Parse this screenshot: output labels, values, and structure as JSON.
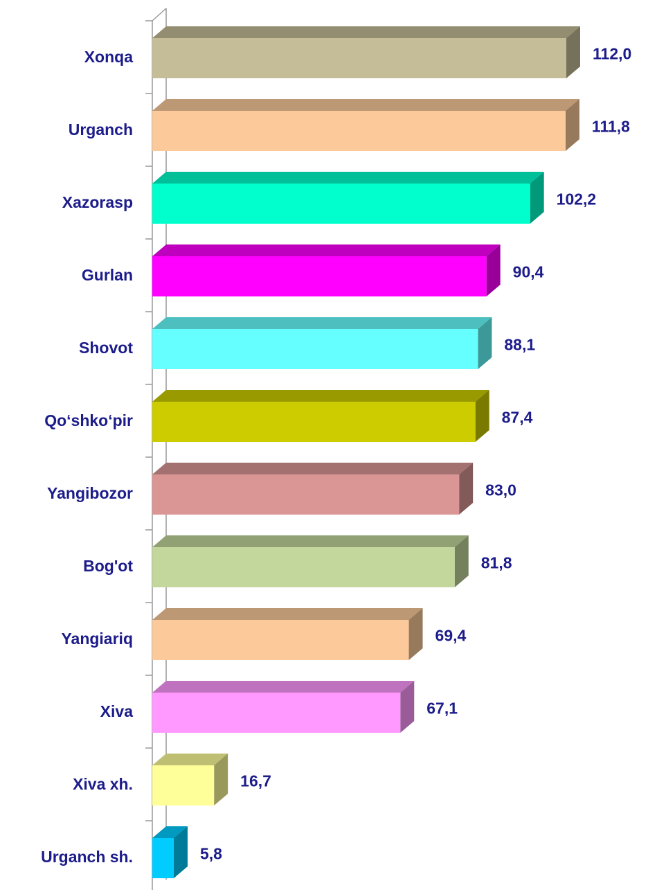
{
  "chart_data": {
    "type": "bar3d_horizontal",
    "categories": [
      "Xonqa",
      "Urganch",
      "Xazorasp",
      "Gurlan",
      "Shovot",
      "Qo‘shko‘pir",
      "Yangibozor",
      "Bog'ot",
      "Yangiariq",
      "Xiva",
      "Xiva xh.",
      "Urganch sh."
    ],
    "values": [
      112.0,
      111.8,
      102.2,
      90.4,
      88.1,
      87.4,
      83.0,
      81.8,
      69.4,
      67.1,
      16.7,
      5.8
    ],
    "value_labels": [
      "112,0",
      "111,8",
      "102,2",
      "90,4",
      "88,1",
      "87,4",
      "83,0",
      "81,8",
      "69,4",
      "67,1",
      "16,7",
      "5,8"
    ],
    "colors": [
      "#c4bd97",
      "#fcca9a",
      "#00ffcc",
      "#ff00ff",
      "#66ffff",
      "#cccc00",
      "#d99694",
      "#c3d69b",
      "#fcca9a",
      "#ff99ff",
      "#ffff99",
      "#00ccff"
    ]
  }
}
